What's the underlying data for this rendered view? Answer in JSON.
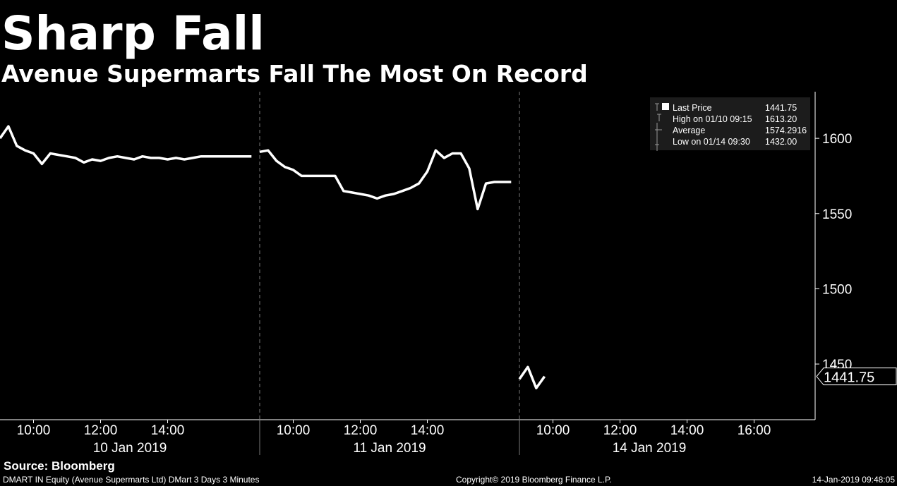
{
  "chart_data": {
    "type": "line",
    "title": "Sharp Fall",
    "subtitle": "Avenue Supermarts Fall The Most On Record",
    "color": "#ffffff",
    "ylim": [
      1413,
      1631
    ],
    "yticks": [
      1450,
      1500,
      1550,
      1600
    ],
    "days": [
      {
        "label": "10 Jan 2019",
        "categories": [
          null,
          null,
          null,
          null,
          "10:00",
          null,
          null,
          null,
          null,
          null,
          null,
          null,
          "12:00",
          null,
          null,
          null,
          null,
          null,
          null,
          null,
          "14:00",
          null,
          null,
          null,
          null,
          null,
          null,
          null,
          null,
          null,
          null
        ],
        "values": [
          1600,
          1608,
          1595,
          1592,
          1590,
          1583,
          1590,
          1589,
          1588,
          1587,
          1584,
          1586,
          1585,
          1587,
          1588,
          1587,
          1586,
          1588,
          1587,
          1587,
          1586,
          1587,
          1586,
          1587,
          1588,
          1588,
          1588,
          1588,
          1588,
          1588,
          1588
        ]
      },
      {
        "label": "11 Jan 2019",
        "categories": [
          null,
          null,
          null,
          null,
          "10:00",
          null,
          null,
          null,
          null,
          null,
          null,
          null,
          "12:00",
          null,
          null,
          null,
          null,
          null,
          null,
          null,
          "14:00",
          null,
          null,
          null,
          null,
          null,
          null,
          null,
          null,
          null,
          null
        ],
        "values": [
          1591,
          1592,
          1585,
          1581,
          1579,
          1575,
          1575,
          1575,
          1575,
          1575,
          1565,
          1564,
          1563,
          1562,
          1560,
          1562,
          1563,
          1565,
          1567,
          1570,
          1578,
          1592,
          1587,
          1590,
          1590,
          1580,
          1553,
          1570,
          1571,
          1571,
          1571
        ]
      },
      {
        "label": "14 Jan 2019",
        "categories": [
          null,
          null,
          null,
          null,
          "10:00",
          null,
          null,
          null,
          null,
          null,
          null,
          null,
          "12:00",
          null,
          null,
          null,
          null,
          null,
          null,
          null,
          "14:00",
          null,
          null,
          null,
          null,
          null,
          null,
          null,
          "16:00",
          null,
          null,
          null,
          null
        ],
        "values": [
          1440,
          1448,
          1434,
          1441.75,
          null,
          null,
          null,
          null,
          null,
          null,
          null,
          null,
          null,
          null,
          null,
          null,
          null,
          null,
          null,
          null,
          null,
          null,
          null,
          null,
          null,
          null,
          null,
          null,
          null,
          null,
          null,
          null,
          null
        ]
      }
    ],
    "stats": [
      {
        "label": "Last Price",
        "value": "1441.75"
      },
      {
        "label": "High on 01/10 09:15",
        "value": "1613.20"
      },
      {
        "label": "Average",
        "value": "1574.2916"
      },
      {
        "label": "Low on 01/14 09:30",
        "value": "1432.00"
      }
    ],
    "source": "Source: Bloomberg",
    "footer_left": "DMART IN Equity (Avenue Supermarts Ltd) DMart 3 Days 3 Minutes",
    "footer_center": "Copyright© 2019 Bloomberg Finance L.P.",
    "footer_right": "14-Jan-2019 09:48:05"
  }
}
